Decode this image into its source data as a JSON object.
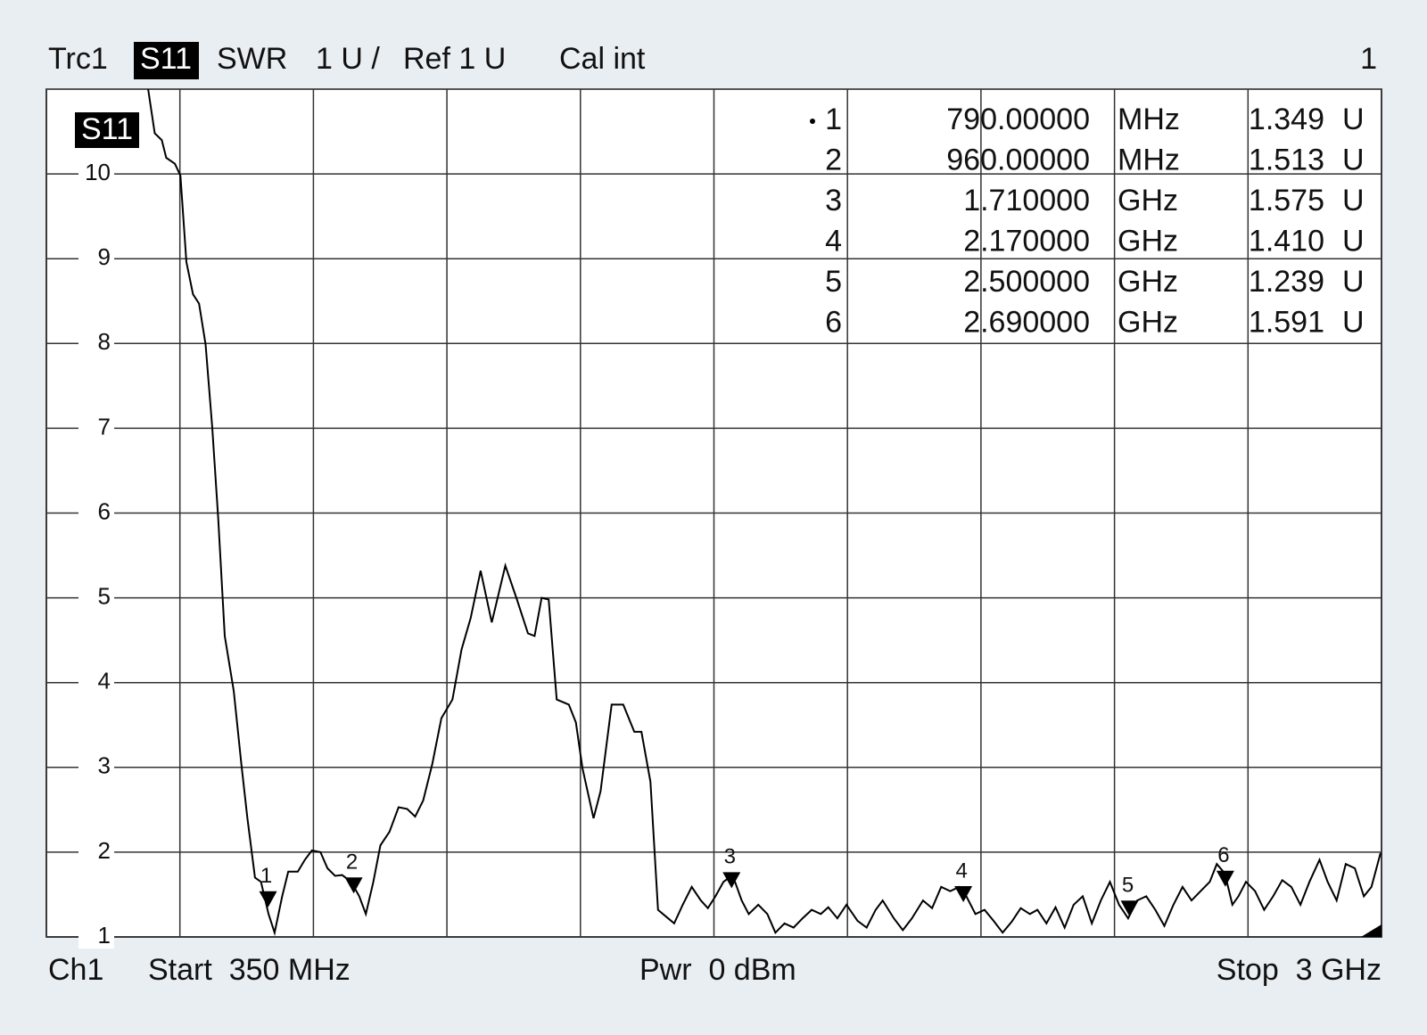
{
  "chart_data": {
    "type": "line",
    "header": {
      "trace": "Trc1",
      "parameter": "S11",
      "format": "SWR",
      "scale": "1 U /",
      "reference": "Ref 1 U",
      "calibration": "Cal int",
      "window": "1"
    },
    "trace_label": "S11",
    "footer": {
      "channel": "Ch1",
      "start": "Start  350 MHz",
      "power": "Pwr  0 dBm",
      "stop": "Stop  3 GHz"
    },
    "xlim": [
      350,
      3000
    ],
    "x_grid": [
      350,
      615,
      880,
      1145,
      1410,
      1675,
      1940,
      2205,
      2470,
      2735,
      3000
    ],
    "ylim": [
      1,
      11
    ],
    "yticks": [
      1,
      2,
      3,
      4,
      5,
      6,
      7,
      8,
      9,
      10
    ],
    "grid": true,
    "series": [
      {
        "name": "S11",
        "color": "#000000",
        "x": [
          552,
          565,
          579,
          588,
          605,
          616,
          628,
          641,
          653,
          666,
          679,
          691,
          704,
          722,
          737,
          749,
          764,
          776,
          791,
          803,
          818,
          830,
          849,
          863,
          877,
          894,
          908,
          923,
          937,
          955,
          971,
          984,
          999,
          1013,
          1031,
          1049,
          1066,
          1082,
          1098,
          1116,
          1134,
          1156,
          1174,
          1192,
          1212,
          1234,
          1261,
          1284,
          1306,
          1319,
          1333,
          1347,
          1363,
          1387,
          1401,
          1414,
          1436,
          1450,
          1472,
          1495,
          1517,
          1531,
          1549,
          1564,
          1580,
          1596,
          1613,
          1631,
          1649,
          1663,
          1678,
          1694,
          1712,
          1730,
          1744,
          1763,
          1781,
          1797,
          1815,
          1833,
          1851,
          1869,
          1887,
          1902,
          1920,
          1938,
          1960,
          1978,
          1996,
          2010,
          2032,
          2050,
          2068,
          2090,
          2108,
          2126,
          2144,
          2162,
          2176,
          2194,
          2212,
          2230,
          2248,
          2266,
          2284,
          2302,
          2317,
          2335,
          2353,
          2371,
          2389,
          2407,
          2425,
          2443,
          2461,
          2479,
          2497,
          2515,
          2533,
          2551,
          2569,
          2587,
          2605,
          2623,
          2641,
          2659,
          2673,
          2689,
          2704,
          2716,
          2731,
          2749,
          2767,
          2785,
          2803,
          2821,
          2839,
          2857,
          2877,
          2893,
          2911,
          2929,
          2947,
          2965,
          2980,
          2998
        ],
        "values": [
          11.0,
          10.48,
          10.4,
          10.19,
          10.12,
          9.98,
          8.96,
          8.58,
          8.47,
          7.99,
          7.02,
          5.95,
          4.55,
          3.9,
          3.04,
          2.4,
          1.7,
          1.65,
          1.27,
          1.05,
          1.48,
          1.77,
          1.77,
          1.91,
          2.02,
          2.0,
          1.81,
          1.72,
          1.73,
          1.65,
          1.48,
          1.27,
          1.65,
          2.08,
          2.24,
          2.53,
          2.51,
          2.42,
          2.61,
          3.04,
          3.58,
          3.8,
          4.39,
          4.76,
          5.32,
          4.71,
          5.38,
          4.98,
          4.58,
          4.55,
          5.0,
          4.98,
          3.8,
          3.74,
          3.53,
          2.99,
          2.4,
          2.72,
          3.74,
          3.74,
          3.42,
          3.42,
          2.83,
          1.32,
          1.24,
          1.16,
          1.38,
          1.59,
          1.43,
          1.34,
          1.48,
          1.65,
          1.73,
          1.43,
          1.27,
          1.38,
          1.27,
          1.05,
          1.16,
          1.11,
          1.22,
          1.32,
          1.27,
          1.35,
          1.22,
          1.38,
          1.19,
          1.11,
          1.32,
          1.43,
          1.22,
          1.08,
          1.22,
          1.43,
          1.34,
          1.59,
          1.54,
          1.59,
          1.48,
          1.27,
          1.32,
          1.19,
          1.05,
          1.18,
          1.34,
          1.27,
          1.32,
          1.16,
          1.35,
          1.11,
          1.38,
          1.48,
          1.16,
          1.43,
          1.65,
          1.38,
          1.22,
          1.43,
          1.48,
          1.32,
          1.13,
          1.38,
          1.59,
          1.43,
          1.54,
          1.65,
          1.86,
          1.75,
          1.38,
          1.48,
          1.65,
          1.54,
          1.32,
          1.48,
          1.67,
          1.59,
          1.38,
          1.65,
          1.91,
          1.65,
          1.43,
          1.86,
          1.81,
          1.48,
          1.59,
          1.99
        ]
      }
    ],
    "markers": {
      "names": [
        "1",
        "2",
        "3",
        "4",
        "5",
        "6"
      ],
      "x": [
        790,
        960,
        1710,
        2170,
        2500,
        2690
      ],
      "x_labels": [
        "790.00000",
        "960.00000",
        "1.710000",
        "2.170000",
        "2.500000",
        "2.690000"
      ],
      "x_units": [
        "MHz",
        "MHz",
        "GHz",
        "GHz",
        "GHz",
        "GHz"
      ],
      "values": [
        1.349,
        1.513,
        1.575,
        1.41,
        1.239,
        1.591
      ],
      "value_labels": [
        "1.349",
        "1.513",
        "1.575",
        "1.410",
        "1.239",
        "1.591"
      ],
      "unit": "U"
    }
  }
}
